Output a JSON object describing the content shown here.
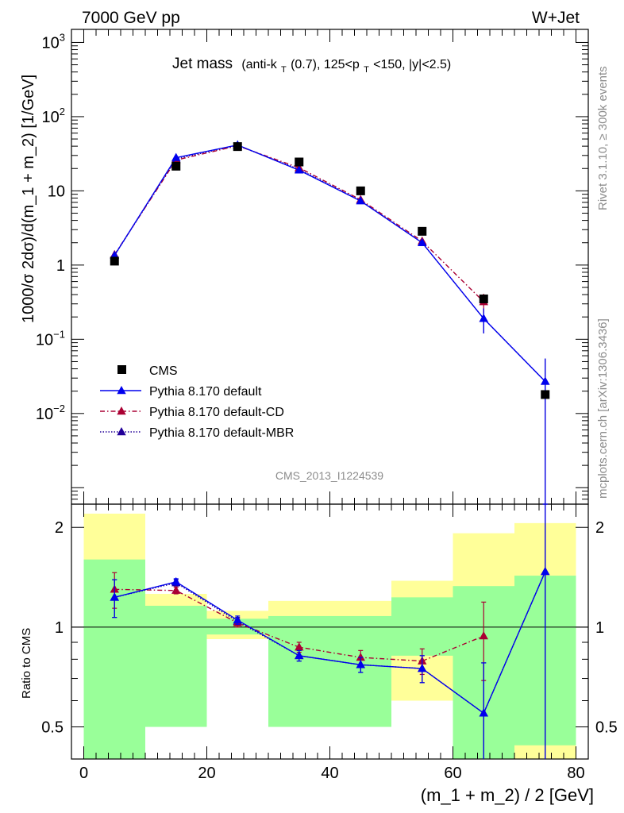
{
  "header": {
    "energy_label": "7000 GeV pp",
    "process_label": "W+Jet",
    "title_main": "Jet mass",
    "title_pre": "(anti-k",
    "title_sub_t1": "T",
    "title_mid": "(0.7), 125<p",
    "title_sub_t2": "T",
    "title_post": "<150, |y|<2.5)",
    "analysis_id": "CMS_2013_I1224539",
    "side_right_top": "Rivet 3.1.10, ≥ 300k events",
    "side_right_bottom": "mcplots.cern.ch [arXiv:1306.3436]"
  },
  "axes": {
    "ylabel_main": "1000/σ 2dσ)/d(m_1 + m_2) [1/GeV]",
    "ylabel_ratio": "Ratio to CMS",
    "xlabel": "(m_1 + m_2) / 2 [GeV]",
    "main_tick_labels": [
      {
        "base": "10",
        "exp": "3",
        "value": 1000
      },
      {
        "base": "10",
        "exp": "2",
        "value": 100
      },
      {
        "base": "10",
        "exp": "",
        "value": 10
      },
      {
        "base": "1",
        "exp": "",
        "value": 1
      },
      {
        "base": "10",
        "exp": "−1",
        "value": 0.1
      },
      {
        "base": "10",
        "exp": "−2",
        "value": 0.01
      }
    ],
    "ratio_tick_labels": [
      {
        "label": "2",
        "value": 2
      },
      {
        "label": "1",
        "value": 1
      },
      {
        "label": "0.5",
        "value": 0.5
      }
    ],
    "x_tick_labels": [
      "0",
      "20",
      "40",
      "60",
      "80"
    ]
  },
  "legend": {
    "placement": "lower-left",
    "entries": [
      {
        "label": "CMS",
        "color": "#000000",
        "marker": "square",
        "line": "none"
      },
      {
        "label": "Pythia 8.170 default",
        "color": "#0000ee",
        "marker": "triangle",
        "line": "solid"
      },
      {
        "label": "Pythia 8.170 default-CD",
        "color": "#aa0033",
        "marker": "triangle",
        "line": "dashdot"
      },
      {
        "label": "Pythia 8.170 default-MBR",
        "color": "#220099",
        "marker": "triangle",
        "line": "dotted"
      }
    ]
  },
  "chart_data": {
    "type": "scatter",
    "xlim": [
      -2,
      82
    ],
    "ylim_main": [
      0.0006,
      1500
    ],
    "yscale_main": "log",
    "ylim_ratio": [
      0.4,
      2.35
    ],
    "yscale_ratio": "log",
    "bins": [
      [
        0,
        10
      ],
      [
        10,
        20
      ],
      [
        20,
        30
      ],
      [
        30,
        40
      ],
      [
        40,
        50
      ],
      [
        50,
        60
      ],
      [
        60,
        70
      ],
      [
        70,
        80
      ]
    ],
    "x": [
      5,
      15,
      25,
      35,
      45,
      55,
      65,
      75
    ],
    "cms": {
      "name": "CMS",
      "values": [
        1.13,
        21.5,
        39.5,
        24.5,
        10.0,
        2.85,
        0.35,
        0.018
      ],
      "band_green": [
        [
          0.35,
          1.6
        ],
        [
          0.5,
          1.16
        ],
        [
          0.95,
          1.06
        ],
        [
          0.5,
          1.08
        ],
        [
          0.5,
          1.08
        ],
        [
          0.82,
          1.23
        ],
        [
          0.35,
          1.33
        ],
        [
          0.44,
          1.43
        ]
      ],
      "band_yellow": [
        [
          0.35,
          2.2
        ],
        [
          0.77,
          1.26
        ],
        [
          0.92,
          1.12
        ],
        [
          0.83,
          1.2
        ],
        [
          0.83,
          1.2
        ],
        [
          0.6,
          1.38
        ],
        [
          0.35,
          1.92
        ],
        [
          0.35,
          2.06
        ]
      ]
    },
    "series": [
      {
        "name": "Pythia 8.170 default",
        "color": "#0000ee",
        "dash": "",
        "values": [
          1.35,
          28.0,
          41.5,
          19.0,
          7.3,
          2.0,
          0.19,
          0.027
        ],
        "errors": [
          0.12,
          0.8,
          1.2,
          0.6,
          0.25,
          0.12,
          0.07,
          0.028
        ],
        "ratio": [
          1.23,
          1.37,
          1.05,
          0.82,
          0.77,
          0.75,
          0.55,
          1.47
        ],
        "ratio_err": [
          0.16,
          0.03,
          0.03,
          0.03,
          0.04,
          0.07,
          0.23,
          1.2
        ]
      },
      {
        "name": "Pythia 8.170 default-CD",
        "color": "#aa0033",
        "dash": "6,3,1.5,3",
        "values": [
          1.38,
          26.0,
          40.5,
          20.5,
          7.6,
          2.1,
          0.32,
          null
        ],
        "errors": [
          0.12,
          0.8,
          1.2,
          0.6,
          0.25,
          0.12,
          0.09,
          null
        ],
        "ratio": [
          1.3,
          1.29,
          1.03,
          0.87,
          0.81,
          0.79,
          0.94,
          null
        ],
        "ratio_err": [
          0.16,
          0.03,
          0.03,
          0.03,
          0.04,
          0.07,
          0.25,
          null
        ]
      },
      {
        "name": "Pythia 8.170 default-MBR",
        "color": "#220099",
        "dash": "1.5,2",
        "values": [
          1.35,
          27.0,
          41.0,
          19.5,
          7.4,
          2.0,
          0.19,
          0.027
        ],
        "errors": [
          0.12,
          0.8,
          1.2,
          0.6,
          0.25,
          0.12,
          0.07,
          0.028
        ],
        "ratio": [
          1.23,
          1.36,
          1.04,
          0.82,
          0.77,
          0.75,
          0.55,
          1.47
        ],
        "ratio_err": [
          0.16,
          0.03,
          0.03,
          0.03,
          0.04,
          0.07,
          0.23,
          1.2
        ]
      }
    ]
  }
}
